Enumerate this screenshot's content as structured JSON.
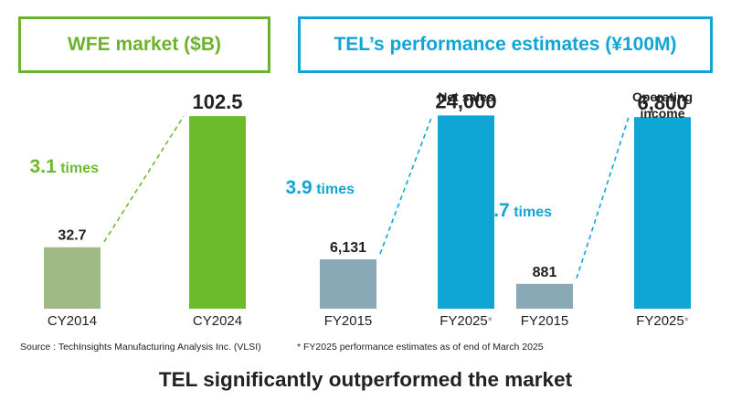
{
  "panels": {
    "left_title": "WFE market ($B)",
    "right_title": "TEL’s performance estimates (¥100M)"
  },
  "chart_data": [
    {
      "type": "bar",
      "title": "WFE market ($B)",
      "categories": [
        "CY2014",
        "CY2024"
      ],
      "values": [
        32.7,
        102.5
      ],
      "value_labels": [
        "32.7",
        "102.5"
      ],
      "colors": [
        "#a0ba85",
        "#6cbb2a"
      ],
      "annotation": {
        "number": "3.1",
        "word": "times",
        "color": "#6cbb2a"
      },
      "ylim": [
        0,
        105
      ]
    },
    {
      "type": "bar",
      "title": "Net sales",
      "categories": [
        "FY2015",
        "FY2025*"
      ],
      "values": [
        6131,
        24000
      ],
      "value_labels": [
        "6,131",
        "24,000"
      ],
      "colors": [
        "#8aa9b7",
        "#0fa6d6"
      ],
      "annotation": {
        "number": "3.9",
        "word": "times",
        "color": "#0fa6d6"
      },
      "ylim": [
        0,
        24500
      ]
    },
    {
      "type": "bar",
      "title": "Operating income",
      "title_lines": [
        "Operating",
        "income"
      ],
      "categories": [
        "FY2015",
        "FY2025*"
      ],
      "values": [
        881,
        6800
      ],
      "value_labels": [
        "881",
        "6,800"
      ],
      "colors": [
        "#8aa9b7",
        "#0fa6d6"
      ],
      "annotation": {
        "number": "7.7",
        "word": "times",
        "color": "#0fa6d6"
      },
      "ylim": [
        0,
        7000
      ]
    }
  ],
  "notes": {
    "source": "Source : TechInsights Manufacturing Analysis Inc. (VLSI)",
    "fy_note": "* FY2025 performance estimates as of end of March 2025"
  },
  "footer": {
    "headline": "TEL significantly outperformed the market"
  }
}
